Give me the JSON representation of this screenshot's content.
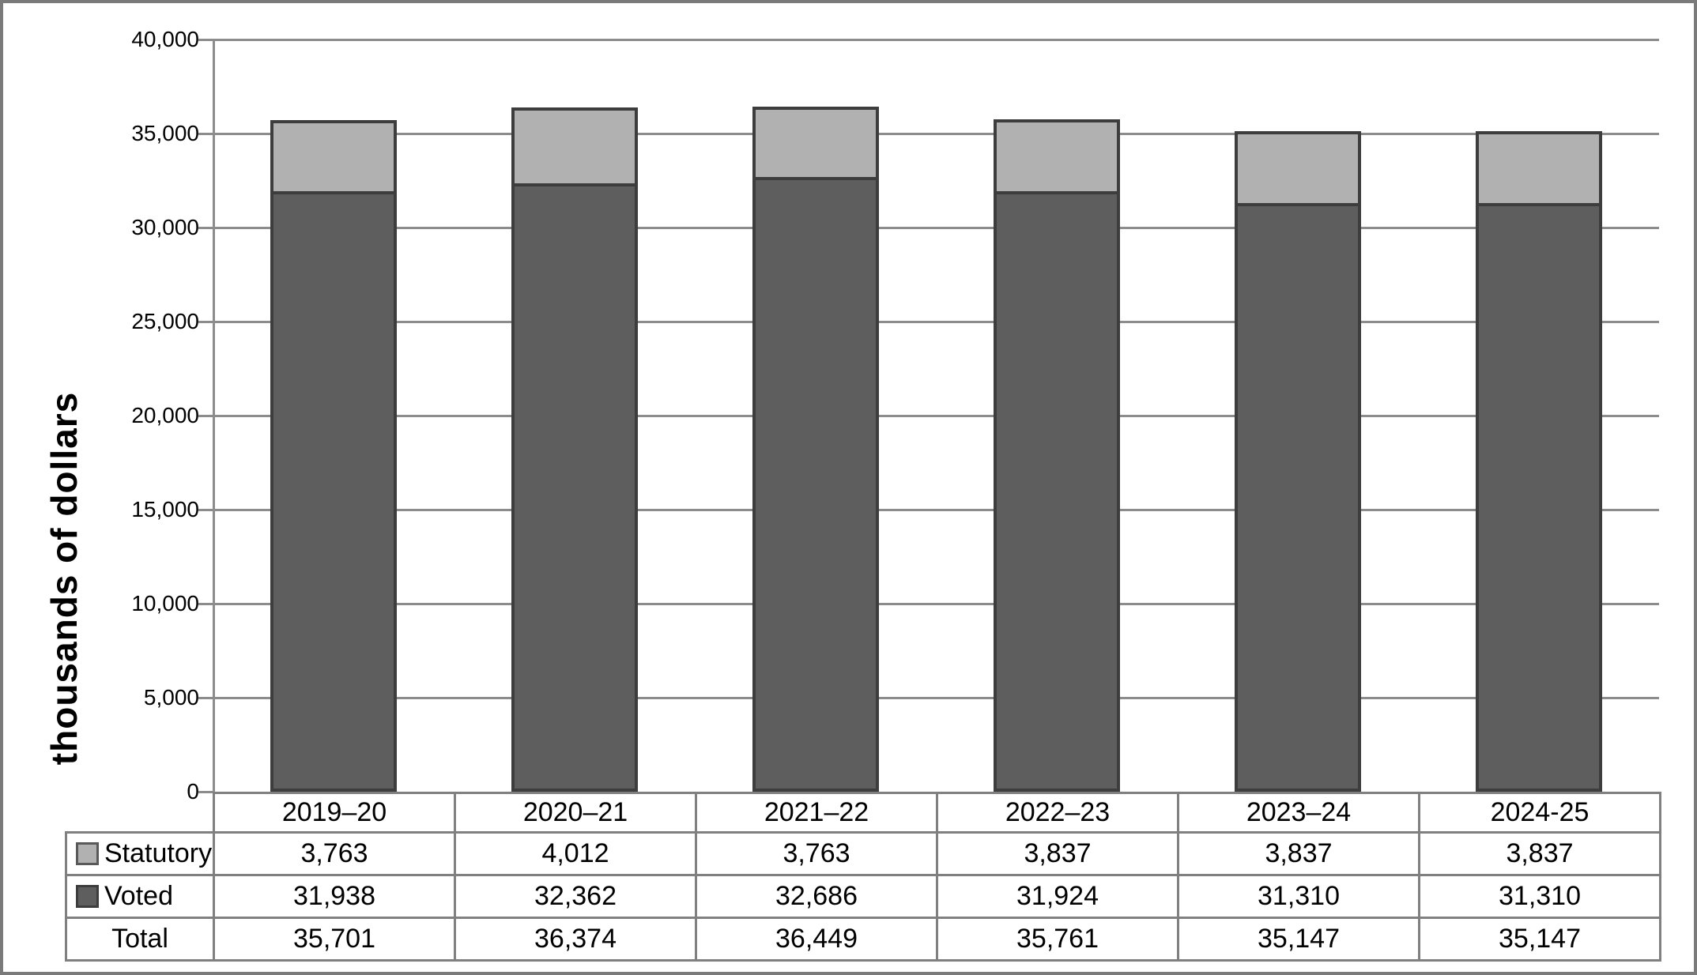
{
  "chart_data": {
    "type": "bar",
    "stacked": true,
    "ylabel": "thousands of dollars",
    "xlabel": "",
    "categories": [
      "2019–20",
      "2020–21",
      "2021–22",
      "2022–23",
      "2023–24",
      "2024-25"
    ],
    "series": [
      {
        "name": "Voted",
        "color": "#5e5e5e",
        "border_color": "#3d3d3d",
        "values": [
          31938,
          32362,
          32686,
          31924,
          31310,
          31310
        ]
      },
      {
        "name": "Statutory",
        "color": "#b1b1b1",
        "border_color": "#3d3d3d",
        "values": [
          3763,
          4012,
          3763,
          3837,
          3837,
          3837
        ]
      }
    ],
    "totals": {
      "label": "Total",
      "values": [
        35701,
        36374,
        36449,
        35761,
        35147,
        35147
      ]
    },
    "ylim": [
      0,
      40000
    ],
    "ytick_step": 5000,
    "y_tick_labels": [
      "0",
      "5,000",
      "10,000",
      "15,000",
      "20,000",
      "25,000",
      "30,000",
      "35,000",
      "40,000"
    ],
    "grid": true,
    "gridline_color": "#8c8c8c",
    "legend_position": "table-left-column"
  },
  "table": {
    "column_headers": [
      "2019–20",
      "2020–21",
      "2021–22",
      "2022–23",
      "2023–24",
      "2024-25"
    ],
    "rows": [
      {
        "label": "Statutory",
        "swatch_fill": "#b1b1b1",
        "swatch_border": "#595959",
        "values": [
          "3,763",
          "4,012",
          "3,763",
          "3,837",
          "3,837",
          "3,837"
        ]
      },
      {
        "label": "Voted",
        "swatch_fill": "#5e5e5e",
        "swatch_border": "#3d3d3d",
        "values": [
          "31,938",
          "32,362",
          "32,686",
          "31,924",
          "31,310",
          "31,310"
        ]
      },
      {
        "label": "Total",
        "swatch_fill": null,
        "swatch_border": null,
        "values": [
          "35,701",
          "36,374",
          "36,449",
          "35,761",
          "35,147",
          "35,147"
        ]
      }
    ],
    "border_color": "#808080"
  },
  "panel": {
    "background": "#ffffff",
    "outer_border_color": "#7a7a7a"
  }
}
